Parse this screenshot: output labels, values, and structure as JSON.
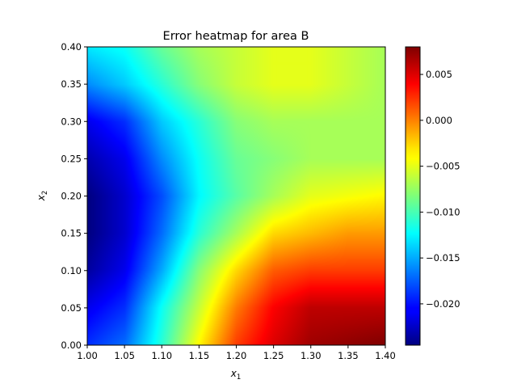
{
  "chart_data": {
    "type": "heatmap",
    "title": "Error heatmap for area B",
    "xlabel": "x",
    "xlabel_sub": "1",
    "ylabel": "x",
    "ylabel_sub": "2",
    "xlim": [
      1.0,
      1.4
    ],
    "ylim": [
      0.0,
      0.4
    ],
    "x_ticks": [
      "1.00",
      "1.05",
      "1.10",
      "1.15",
      "1.20",
      "1.25",
      "1.30",
      "1.35",
      "1.40"
    ],
    "y_ticks": [
      "0.00",
      "0.05",
      "0.10",
      "0.15",
      "0.20",
      "0.25",
      "0.30",
      "0.35",
      "0.40"
    ],
    "colormap": "jet",
    "colorbar": {
      "vmin": -0.0245,
      "vmax": 0.008,
      "ticks": [
        "0.005",
        "0.000",
        "−0.005",
        "−0.010",
        "−0.015",
        "−0.020"
      ]
    },
    "grid_x": [
      1.0,
      1.05,
      1.1,
      1.15,
      1.2,
      1.25,
      1.3,
      1.35,
      1.4
    ],
    "grid_y": [
      0.4,
      0.35,
      0.3,
      0.25,
      0.2,
      0.15,
      0.1,
      0.05,
      0.0
    ],
    "z": [
      [
        -0.013,
        -0.012,
        -0.009,
        -0.007,
        -0.006,
        -0.005,
        -0.005,
        -0.006,
        -0.007
      ],
      [
        -0.016,
        -0.014,
        -0.011,
        -0.008,
        -0.006,
        -0.005,
        -0.005,
        -0.006,
        -0.007
      ],
      [
        -0.021,
        -0.019,
        -0.014,
        -0.011,
        -0.008,
        -0.007,
        -0.007,
        -0.007,
        -0.007
      ],
      [
        -0.023,
        -0.021,
        -0.016,
        -0.012,
        -0.009,
        -0.008,
        -0.007,
        -0.007,
        -0.007
      ],
      [
        -0.0245,
        -0.022,
        -0.018,
        -0.0125,
        -0.0095,
        -0.007,
        -0.005,
        -0.0045,
        -0.004
      ],
      [
        -0.0245,
        -0.022,
        -0.017,
        -0.011,
        -0.007,
        -0.003,
        -0.002,
        -0.001,
        -0.001
      ],
      [
        -0.0235,
        -0.021,
        -0.015,
        -0.008,
        -0.003,
        0.001,
        0.002,
        0.002,
        0.002
      ],
      [
        -0.021,
        -0.019,
        -0.012,
        -0.006,
        0.0,
        0.004,
        0.006,
        0.006,
        0.006
      ],
      [
        -0.019,
        -0.017,
        -0.011,
        -0.004,
        0.002,
        0.005,
        0.007,
        0.0075,
        0.008
      ]
    ]
  }
}
